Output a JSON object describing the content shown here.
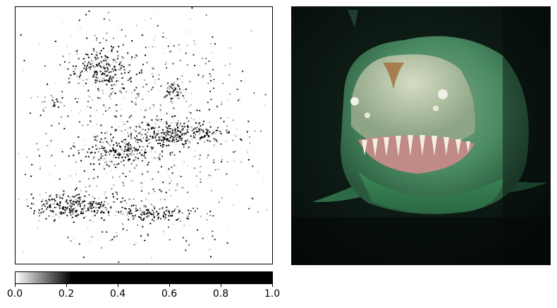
{
  "chart_data": [
    {
      "type": "heatmap",
      "title": "",
      "xlabel": "",
      "ylabel": "",
      "description_level": "saliency attribution map, grayscale",
      "colormap": "gray_r (0 = white, 1 = black)",
      "grid": false,
      "clusters": [
        {
          "cx": 0.33,
          "cy": 0.24,
          "rx": 0.12,
          "ry": 0.1,
          "intensity": 0.85,
          "count": 260
        },
        {
          "cx": 0.61,
          "cy": 0.49,
          "rx": 0.21,
          "ry": 0.045,
          "intensity": 0.95,
          "count": 300
        },
        {
          "cx": 0.41,
          "cy": 0.56,
          "rx": 0.14,
          "ry": 0.06,
          "intensity": 0.8,
          "count": 220
        },
        {
          "cx": 0.22,
          "cy": 0.77,
          "rx": 0.15,
          "ry": 0.05,
          "intensity": 0.95,
          "count": 300
        },
        {
          "cx": 0.52,
          "cy": 0.8,
          "rx": 0.18,
          "ry": 0.03,
          "intensity": 0.6,
          "count": 160
        },
        {
          "cx": 0.62,
          "cy": 0.33,
          "rx": 0.05,
          "ry": 0.03,
          "intensity": 0.8,
          "count": 50
        },
        {
          "cx": 0.15,
          "cy": 0.37,
          "rx": 0.04,
          "ry": 0.03,
          "intensity": 0.5,
          "count": 30
        },
        {
          "cx": 0.5,
          "cy": 0.5,
          "rx": 0.48,
          "ry": 0.48,
          "intensity": 0.25,
          "count": 900
        }
      ]
    },
    {
      "type": "heatmap",
      "title": "",
      "colorbar": {
        "min": 0.0,
        "max": 1.0,
        "ticks": [
          "0.0",
          "0.2",
          "0.4",
          "0.6",
          "0.8",
          "1.0"
        ],
        "tick_values": [
          0.0,
          0.2,
          0.4,
          0.6,
          0.8,
          1.0
        ],
        "saturation_at": 0.25,
        "orientation": "horizontal"
      }
    }
  ],
  "photo": {
    "subject": "shark-face",
    "background_color": "#0a1512",
    "body_color": "#3f8a5e",
    "face_color": "#b8c7a5",
    "mouth_color": "#c08a86"
  },
  "colors": {
    "frame": "#000000",
    "background": "#ffffff"
  }
}
